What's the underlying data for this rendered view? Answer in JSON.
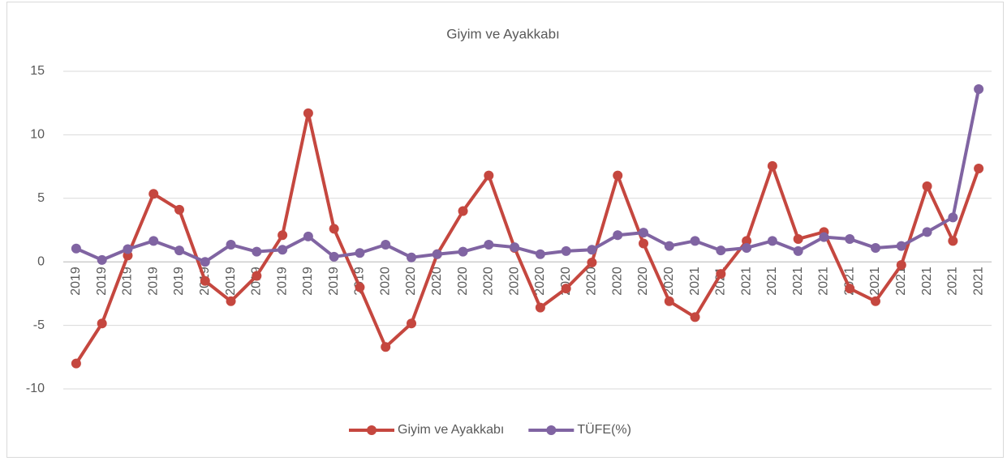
{
  "chart_data": {
    "type": "line",
    "title": "Giyim ve Ayakkabı",
    "categories": [
      "2019",
      "2019",
      "2019",
      "2019",
      "2019",
      "2019",
      "2019",
      "2019",
      "2019",
      "2019",
      "2019",
      "2019",
      "2020",
      "2020",
      "2020",
      "2020",
      "2020",
      "2020",
      "2020",
      "2020",
      "2020",
      "2020",
      "2020",
      "2020",
      "2021",
      "2021",
      "2021",
      "2021",
      "2021",
      "2021",
      "2021",
      "2021",
      "2021",
      "2021",
      "2021",
      "2021"
    ],
    "series": [
      {
        "name": "Giyim ve Ayakkabı",
        "color": "#c5473f",
        "values": [
          -8.0,
          -4.85,
          0.5,
          5.35,
          4.1,
          -1.5,
          -3.1,
          -1.1,
          2.1,
          11.7,
          2.6,
          -2.0,
          -6.7,
          -4.85,
          0.6,
          4.0,
          6.8,
          1.1,
          -3.6,
          -2.1,
          -0.05,
          6.8,
          1.45,
          -3.1,
          -4.35,
          -0.95,
          1.65,
          7.55,
          1.8,
          2.35,
          -2.1,
          -3.1,
          -0.25,
          5.95,
          1.65,
          7.35
        ]
      },
      {
        "name": "TÜFE(%)",
        "color": "#8064a2",
        "values": [
          1.05,
          0.15,
          1.0,
          1.65,
          0.9,
          0.0,
          1.35,
          0.8,
          0.95,
          2.0,
          0.4,
          0.7,
          1.35,
          0.35,
          0.6,
          0.8,
          1.35,
          1.15,
          0.6,
          0.85,
          0.95,
          2.1,
          2.3,
          1.25,
          1.65,
          0.9,
          1.1,
          1.65,
          0.85,
          1.95,
          1.8,
          1.1,
          1.25,
          2.35,
          3.5,
          13.6
        ]
      }
    ],
    "ylim": [
      -10,
      15
    ],
    "yticks": [
      -10,
      -5,
      0,
      5,
      10,
      15
    ],
    "grid": true,
    "legend": "bottom"
  }
}
